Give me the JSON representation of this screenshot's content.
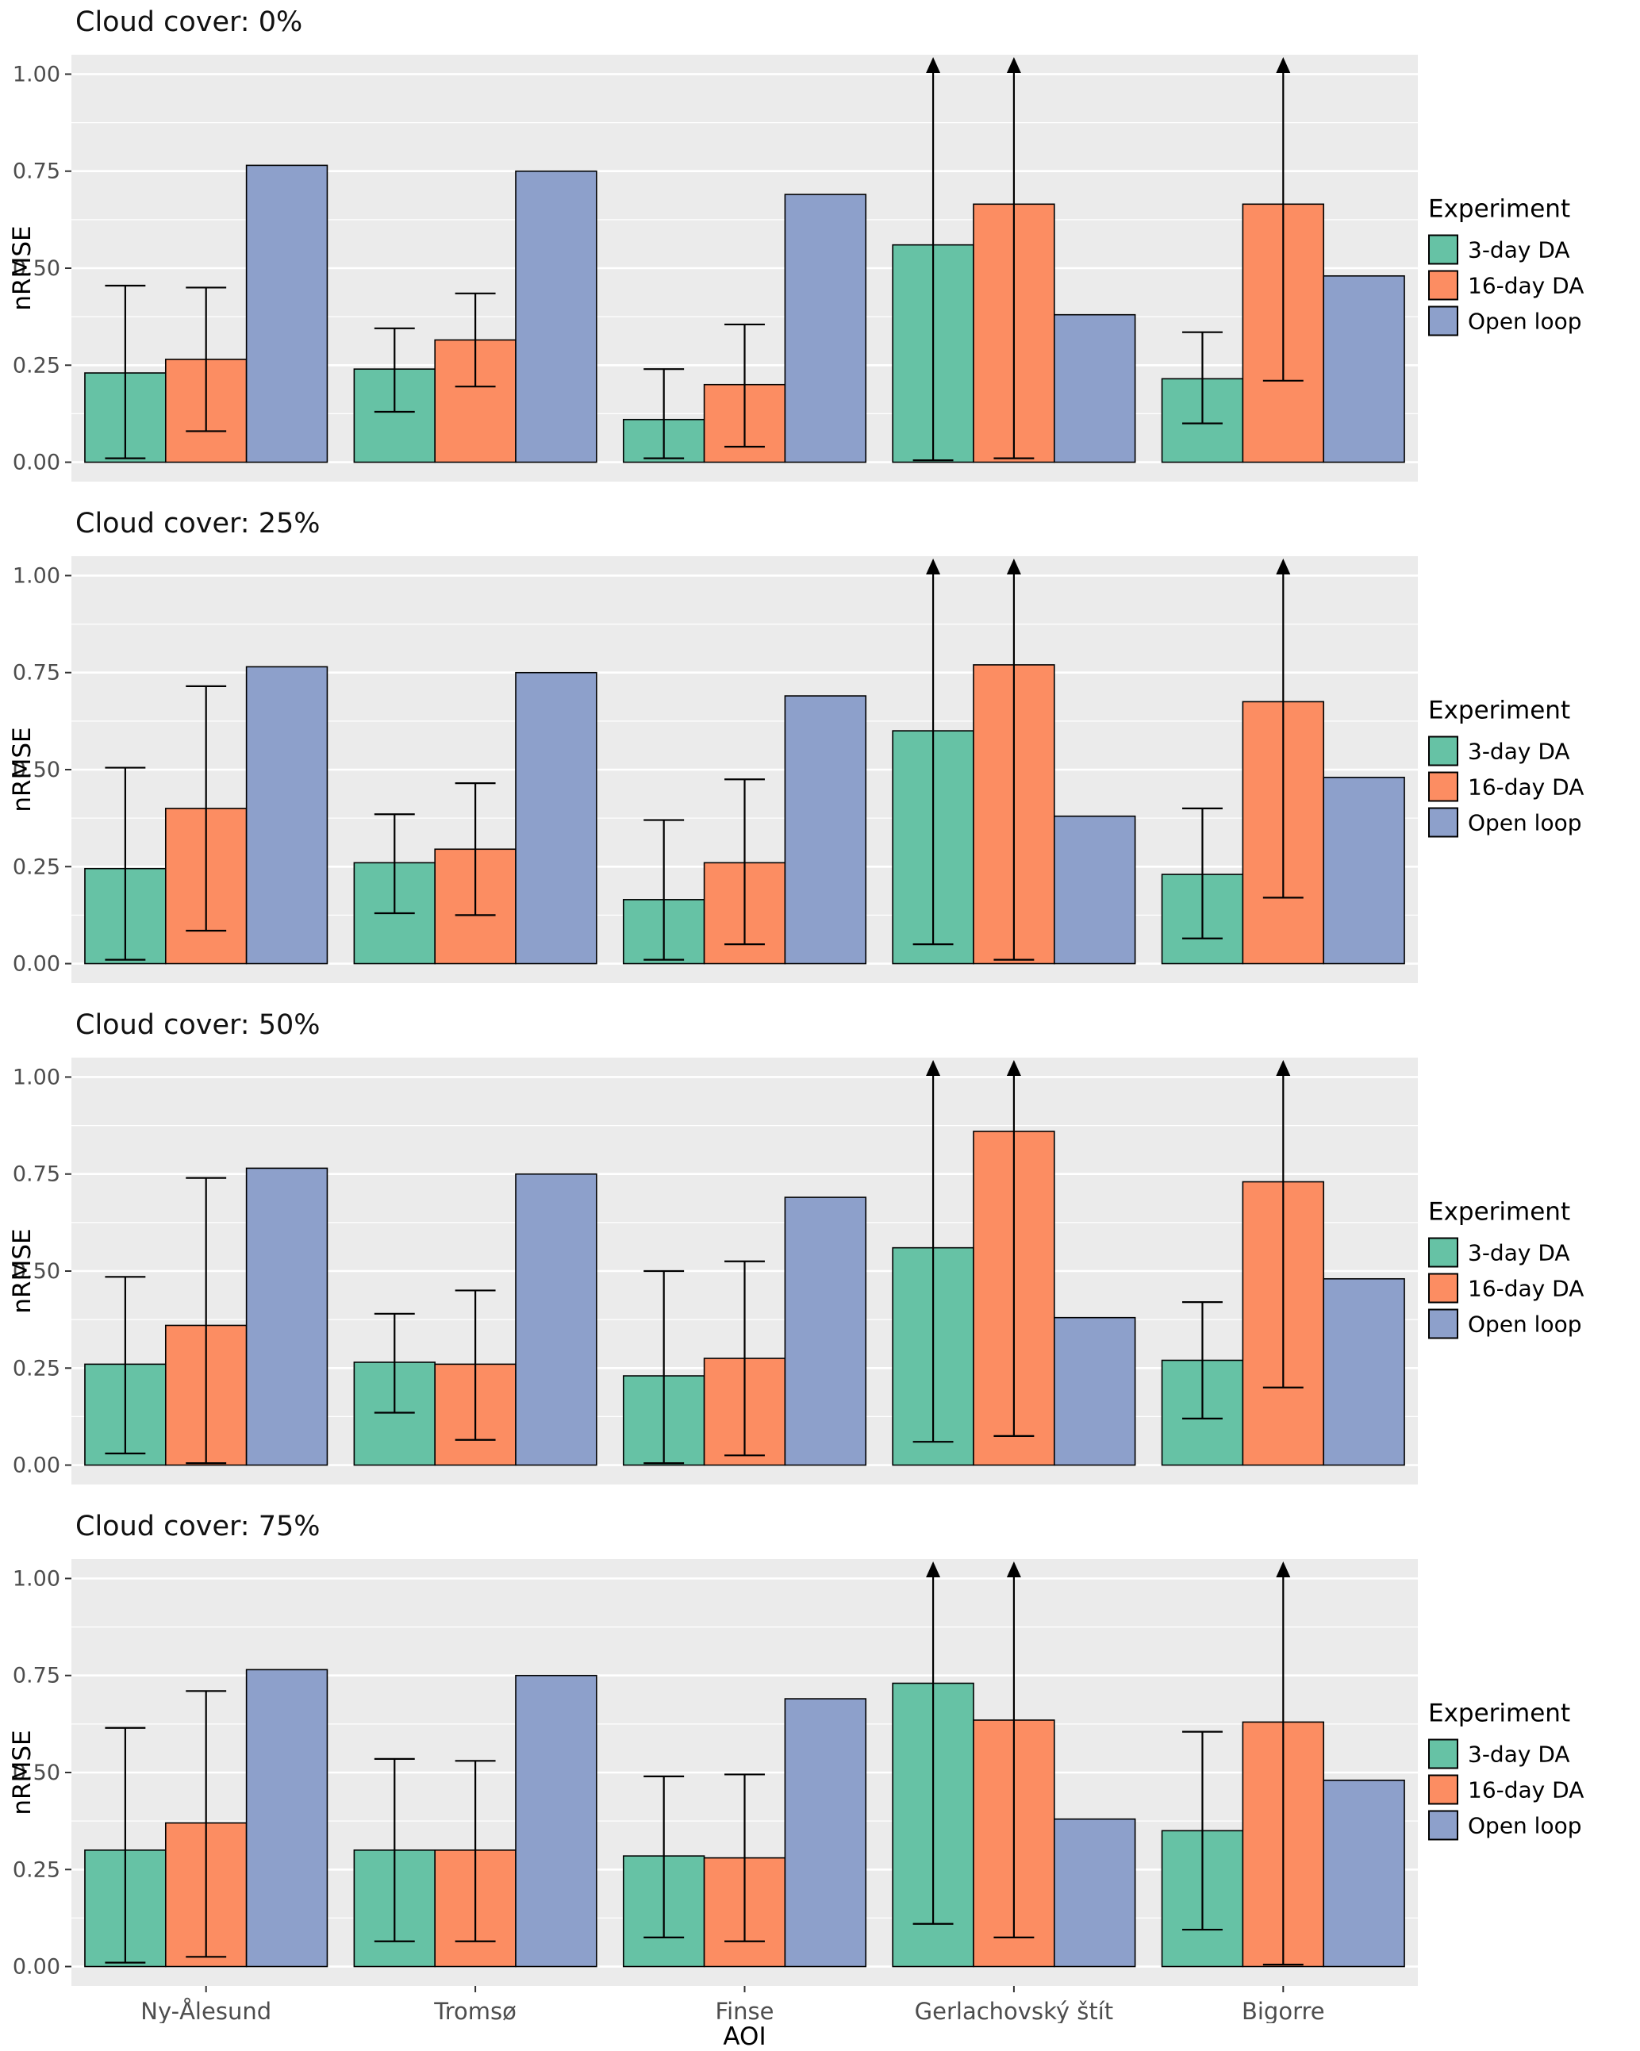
{
  "chart_data": {
    "type": "bar",
    "title": "",
    "xlabel": "AOI",
    "ylabel": "nRMSE",
    "ylim": [
      0,
      1.0
    ],
    "yticks": [
      "0.00",
      "0.25",
      "0.50",
      "0.75",
      "1.00"
    ],
    "minor_gridlines": [
      0.125,
      0.375,
      0.625,
      0.875
    ],
    "categories": [
      "Ny-Ålesund",
      "Tromsø",
      "Finse",
      "Gerlachovský štít",
      "Bigorre"
    ],
    "legend_title": "Experiment",
    "legend_position": "right",
    "series_names": [
      "3-day DA",
      "16-day DA",
      "Open loop"
    ],
    "colors": {
      "3-day DA": "#66C2A5",
      "16-day DA": "#FC8D62",
      "Open loop": "#8DA0CB"
    },
    "panel_background": "#EBEBEB",
    "gridline_color": "#FFFFFF",
    "bar_outline": "#000000",
    "note": "err_high value 1.05 marks whiskers extending beyond the top of the y-axis, drawn as upward arrows; Open loop bars have no error bars",
    "facets": [
      {
        "label": "Cloud cover: 0%",
        "series": [
          {
            "name": "3-day DA",
            "values": [
              0.23,
              0.24,
              0.11,
              0.56,
              0.215
            ],
            "err_low": [
              0.01,
              0.13,
              0.01,
              0.005,
              0.1
            ],
            "err_high": [
              0.455,
              0.345,
              0.24,
              1.05,
              0.335
            ]
          },
          {
            "name": "16-day DA",
            "values": [
              0.265,
              0.315,
              0.2,
              0.665,
              0.665
            ],
            "err_low": [
              0.08,
              0.195,
              0.04,
              0.01,
              0.21
            ],
            "err_high": [
              0.45,
              0.435,
              0.355,
              1.05,
              1.05
            ]
          },
          {
            "name": "Open loop",
            "values": [
              0.765,
              0.75,
              0.69,
              0.38,
              0.48
            ],
            "err_low": null,
            "err_high": null
          }
        ]
      },
      {
        "label": "Cloud cover: 25%",
        "series": [
          {
            "name": "3-day DA",
            "values": [
              0.245,
              0.26,
              0.165,
              0.6,
              0.23
            ],
            "err_low": [
              0.01,
              0.13,
              0.01,
              0.05,
              0.065
            ],
            "err_high": [
              0.505,
              0.385,
              0.37,
              1.05,
              0.4
            ]
          },
          {
            "name": "16-day DA",
            "values": [
              0.4,
              0.295,
              0.26,
              0.77,
              0.675
            ],
            "err_low": [
              0.085,
              0.125,
              0.05,
              0.01,
              0.17
            ],
            "err_high": [
              0.715,
              0.465,
              0.475,
              1.05,
              1.05
            ]
          },
          {
            "name": "Open loop",
            "values": [
              0.765,
              0.75,
              0.69,
              0.38,
              0.48
            ],
            "err_low": null,
            "err_high": null
          }
        ]
      },
      {
        "label": "Cloud cover: 50%",
        "series": [
          {
            "name": "3-day DA",
            "values": [
              0.26,
              0.265,
              0.23,
              0.56,
              0.27
            ],
            "err_low": [
              0.03,
              0.135,
              0.005,
              0.06,
              0.12
            ],
            "err_high": [
              0.485,
              0.39,
              0.5,
              1.05,
              0.42
            ]
          },
          {
            "name": "16-day DA",
            "values": [
              0.36,
              0.26,
              0.275,
              0.86,
              0.73
            ],
            "err_low": [
              0.005,
              0.065,
              0.025,
              0.075,
              0.2
            ],
            "err_high": [
              0.74,
              0.45,
              0.525,
              1.05,
              1.05
            ]
          },
          {
            "name": "Open loop",
            "values": [
              0.765,
              0.75,
              0.69,
              0.38,
              0.48
            ],
            "err_low": null,
            "err_high": null
          }
        ]
      },
      {
        "label": "Cloud cover: 75%",
        "series": [
          {
            "name": "3-day DA",
            "values": [
              0.3,
              0.3,
              0.285,
              0.73,
              0.35
            ],
            "err_low": [
              0.01,
              0.065,
              0.075,
              0.11,
              0.095
            ],
            "err_high": [
              0.615,
              0.535,
              0.49,
              1.05,
              0.605
            ]
          },
          {
            "name": "16-day DA",
            "values": [
              0.37,
              0.3,
              0.28,
              0.635,
              0.63
            ],
            "err_low": [
              0.025,
              0.065,
              0.065,
              0.075,
              0.005
            ],
            "err_high": [
              0.71,
              0.53,
              0.495,
              1.05,
              1.05
            ]
          },
          {
            "name": "Open loop",
            "values": [
              0.765,
              0.75,
              0.69,
              0.38,
              0.48
            ],
            "err_low": null,
            "err_high": null
          }
        ]
      }
    ]
  }
}
